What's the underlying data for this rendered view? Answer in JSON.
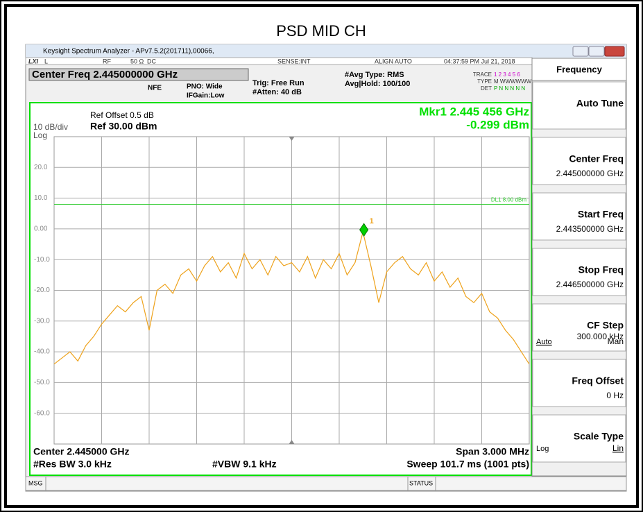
{
  "title": "PSD MID CH",
  "window_title": "Keysight Spectrum Analyzer - APv7.5.2(201711),00066,",
  "top_bar": {
    "lxi": "LXI",
    "l": "L",
    "rf": "RF",
    "imp": "50 Ω",
    "dc": "DC",
    "sense": "SENSE:INT",
    "align": "ALIGN AUTO",
    "time": "04:37:59 PM Jul 21, 2018"
  },
  "settings": {
    "center": "Center Freq 2.445000000 GHz",
    "nfe": "NFE",
    "pno": "PNO: Wide",
    "ifgain": "IFGain:Low",
    "trig": "Trig: Free Run",
    "atten": "#Atten: 40 dB",
    "avg_type": "#Avg Type: RMS",
    "avg_hold": "Avg|Hold: 100/100",
    "trace": "TRACE",
    "trace_nums": "1 2 3 4 5 6",
    "type": "TYPE",
    "type_val": "M WWWWWW",
    "det": "DET",
    "det_val": "P N N N N N"
  },
  "graph": {
    "ref_offset": "Ref Offset 0.5 dB",
    "scale": "10 dB/div",
    "ref": "Ref 30.00 dBm",
    "log": "Log",
    "marker_freq": "Mkr1 2.445 456 GHz",
    "marker_amp": "-0.299 dBm",
    "center": "Center 2.445000 GHz",
    "span": "Span 3.000 MHz",
    "rbw": "#Res BW 3.0 kHz",
    "vbw": "#VBW 9.1 kHz",
    "sweep": "Sweep  101.7 ms (1001 pts)"
  },
  "chart_data": {
    "type": "line",
    "color": "#eea21b",
    "xlim": [
      2443.5,
      2446.5
    ],
    "ylim": [
      -70,
      30
    ],
    "yticks": [
      {
        "value": 20,
        "label": "20.0"
      },
      {
        "value": 10,
        "label": "10.0"
      },
      {
        "value": 0,
        "label": "0.00"
      },
      {
        "value": -10,
        "label": "-10.0"
      },
      {
        "value": -20,
        "label": "-20.0"
      },
      {
        "value": -30,
        "label": "-30.0"
      },
      {
        "value": -40,
        "label": "-40.0"
      },
      {
        "value": -50,
        "label": "-50.0"
      },
      {
        "value": -60,
        "label": "-60.0"
      }
    ],
    "x": [
      2443.5,
      2443.55,
      2443.6,
      2443.65,
      2443.7,
      2443.75,
      2443.8,
      2443.85,
      2443.9,
      2443.95,
      2444.0,
      2444.05,
      2444.1,
      2444.15,
      2444.2,
      2444.25,
      2444.3,
      2444.35,
      2444.4,
      2444.45,
      2444.5,
      2444.55,
      2444.6,
      2444.65,
      2444.7,
      2444.75,
      2444.8,
      2444.85,
      2444.9,
      2444.95,
      2445.0,
      2445.05,
      2445.1,
      2445.15,
      2445.2,
      2445.25,
      2445.3,
      2445.35,
      2445.4,
      2445.45,
      2445.5,
      2445.55,
      2445.6,
      2445.65,
      2445.7,
      2445.75,
      2445.8,
      2445.85,
      2445.9,
      2445.95,
      2446.0,
      2446.05,
      2446.1,
      2446.15,
      2446.2,
      2446.25,
      2446.3,
      2446.35,
      2446.4,
      2446.45,
      2446.5
    ],
    "values": [
      -44,
      -42,
      -40,
      -43,
      -38,
      -35,
      -31,
      -28,
      -25,
      -27,
      -24,
      -22,
      -33,
      -20,
      -18,
      -21,
      -15,
      -13,
      -17,
      -12,
      -9,
      -14,
      -11,
      -16,
      -8,
      -13,
      -10,
      -15,
      -9,
      -12,
      -11,
      -14,
      -9,
      -16,
      -10,
      -13,
      -8,
      -15,
      -11,
      -1,
      -12,
      -24,
      -14,
      -11,
      -9,
      -13,
      -15,
      -11,
      -17,
      -14,
      -19,
      -16,
      -22,
      -24,
      -21,
      -27,
      -29,
      -33,
      -36,
      -40,
      -44
    ],
    "display_line": {
      "value": 8,
      "label": "DL1 8.00 dBm"
    },
    "marker": {
      "label": "1",
      "x": 2445.456,
      "y": -0.299
    }
  },
  "softkeys": {
    "menu": "Frequency",
    "keys": [
      {
        "label": "Auto Tune"
      },
      {
        "label": "Center Freq",
        "value": "2.445000000 GHz"
      },
      {
        "label": "Start Freq",
        "value": "2.443500000 GHz"
      },
      {
        "label": "Stop Freq",
        "value": "2.446500000 GHz"
      },
      {
        "label": "CF Step",
        "value": "300.000 kHz",
        "options": [
          "Auto",
          "Man"
        ]
      },
      {
        "label": "Freq Offset",
        "value": "0 Hz"
      },
      {
        "label": "Scale Type",
        "options": [
          "Log",
          "Lin"
        ]
      }
    ]
  },
  "status": {
    "msg": "MSG",
    "status": "STATUS"
  }
}
